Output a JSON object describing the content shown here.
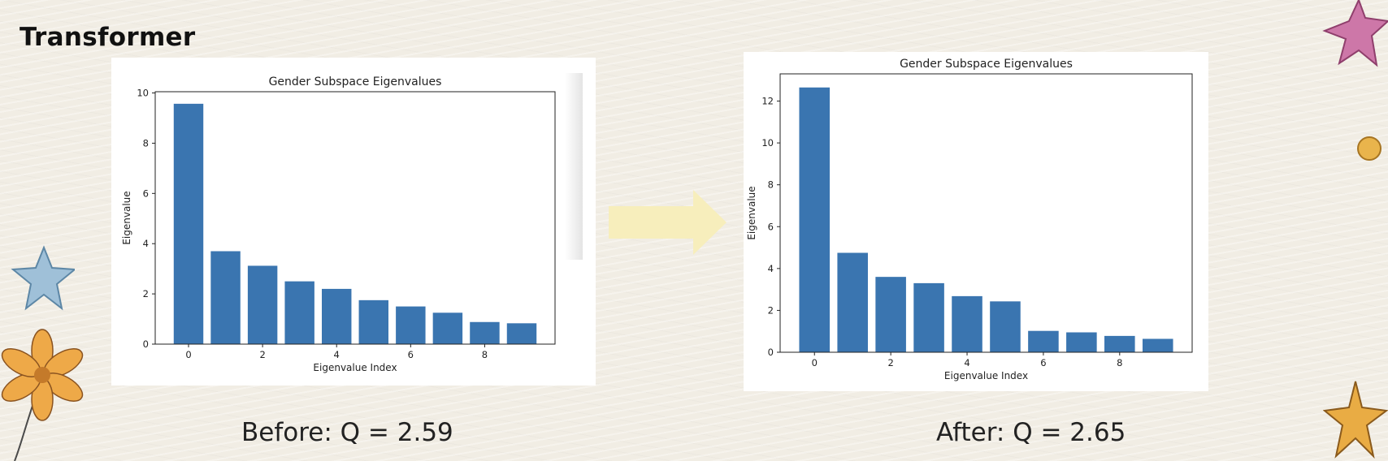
{
  "slide": {
    "title": "Transformer",
    "caption_before": "Before: Q = 2.59",
    "caption_after": "After: Q = 2.65"
  },
  "colors": {
    "bar": "#3a75b0",
    "arrow": "#f7eebc",
    "background": "#f1ede4"
  },
  "icons": [
    "arrow-right-icon",
    "star-icon",
    "flower-icon",
    "bead-icon"
  ],
  "chart_data": [
    {
      "type": "bar",
      "title": "Gender Subspace Eigenvalues",
      "xlabel": "Eigenvalue Index",
      "ylabel": "Eigenvalue",
      "categories": [
        0,
        1,
        2,
        3,
        4,
        5,
        6,
        7,
        8,
        9
      ],
      "values": [
        9.57,
        3.7,
        3.12,
        2.5,
        2.2,
        1.75,
        1.5,
        1.25,
        0.88,
        0.83
      ],
      "xticks": [
        0,
        2,
        4,
        6,
        8
      ],
      "yticks": [
        0,
        2,
        4,
        6,
        8,
        10
      ],
      "ylim": [
        0,
        10.05
      ],
      "grid": false
    },
    {
      "type": "bar",
      "title": "Gender Subspace Eigenvalues",
      "xlabel": "Eigenvalue Index",
      "ylabel": "Eigenvalue",
      "categories": [
        0,
        1,
        2,
        3,
        4,
        5,
        6,
        7,
        8,
        9
      ],
      "values": [
        12.65,
        4.75,
        3.6,
        3.3,
        2.68,
        2.43,
        1.02,
        0.95,
        0.78,
        0.64
      ],
      "xticks": [
        0,
        2,
        4,
        6,
        8
      ],
      "yticks": [
        0,
        2,
        4,
        6,
        8,
        10,
        12
      ],
      "ylim": [
        0,
        13.3
      ],
      "grid": false
    }
  ]
}
